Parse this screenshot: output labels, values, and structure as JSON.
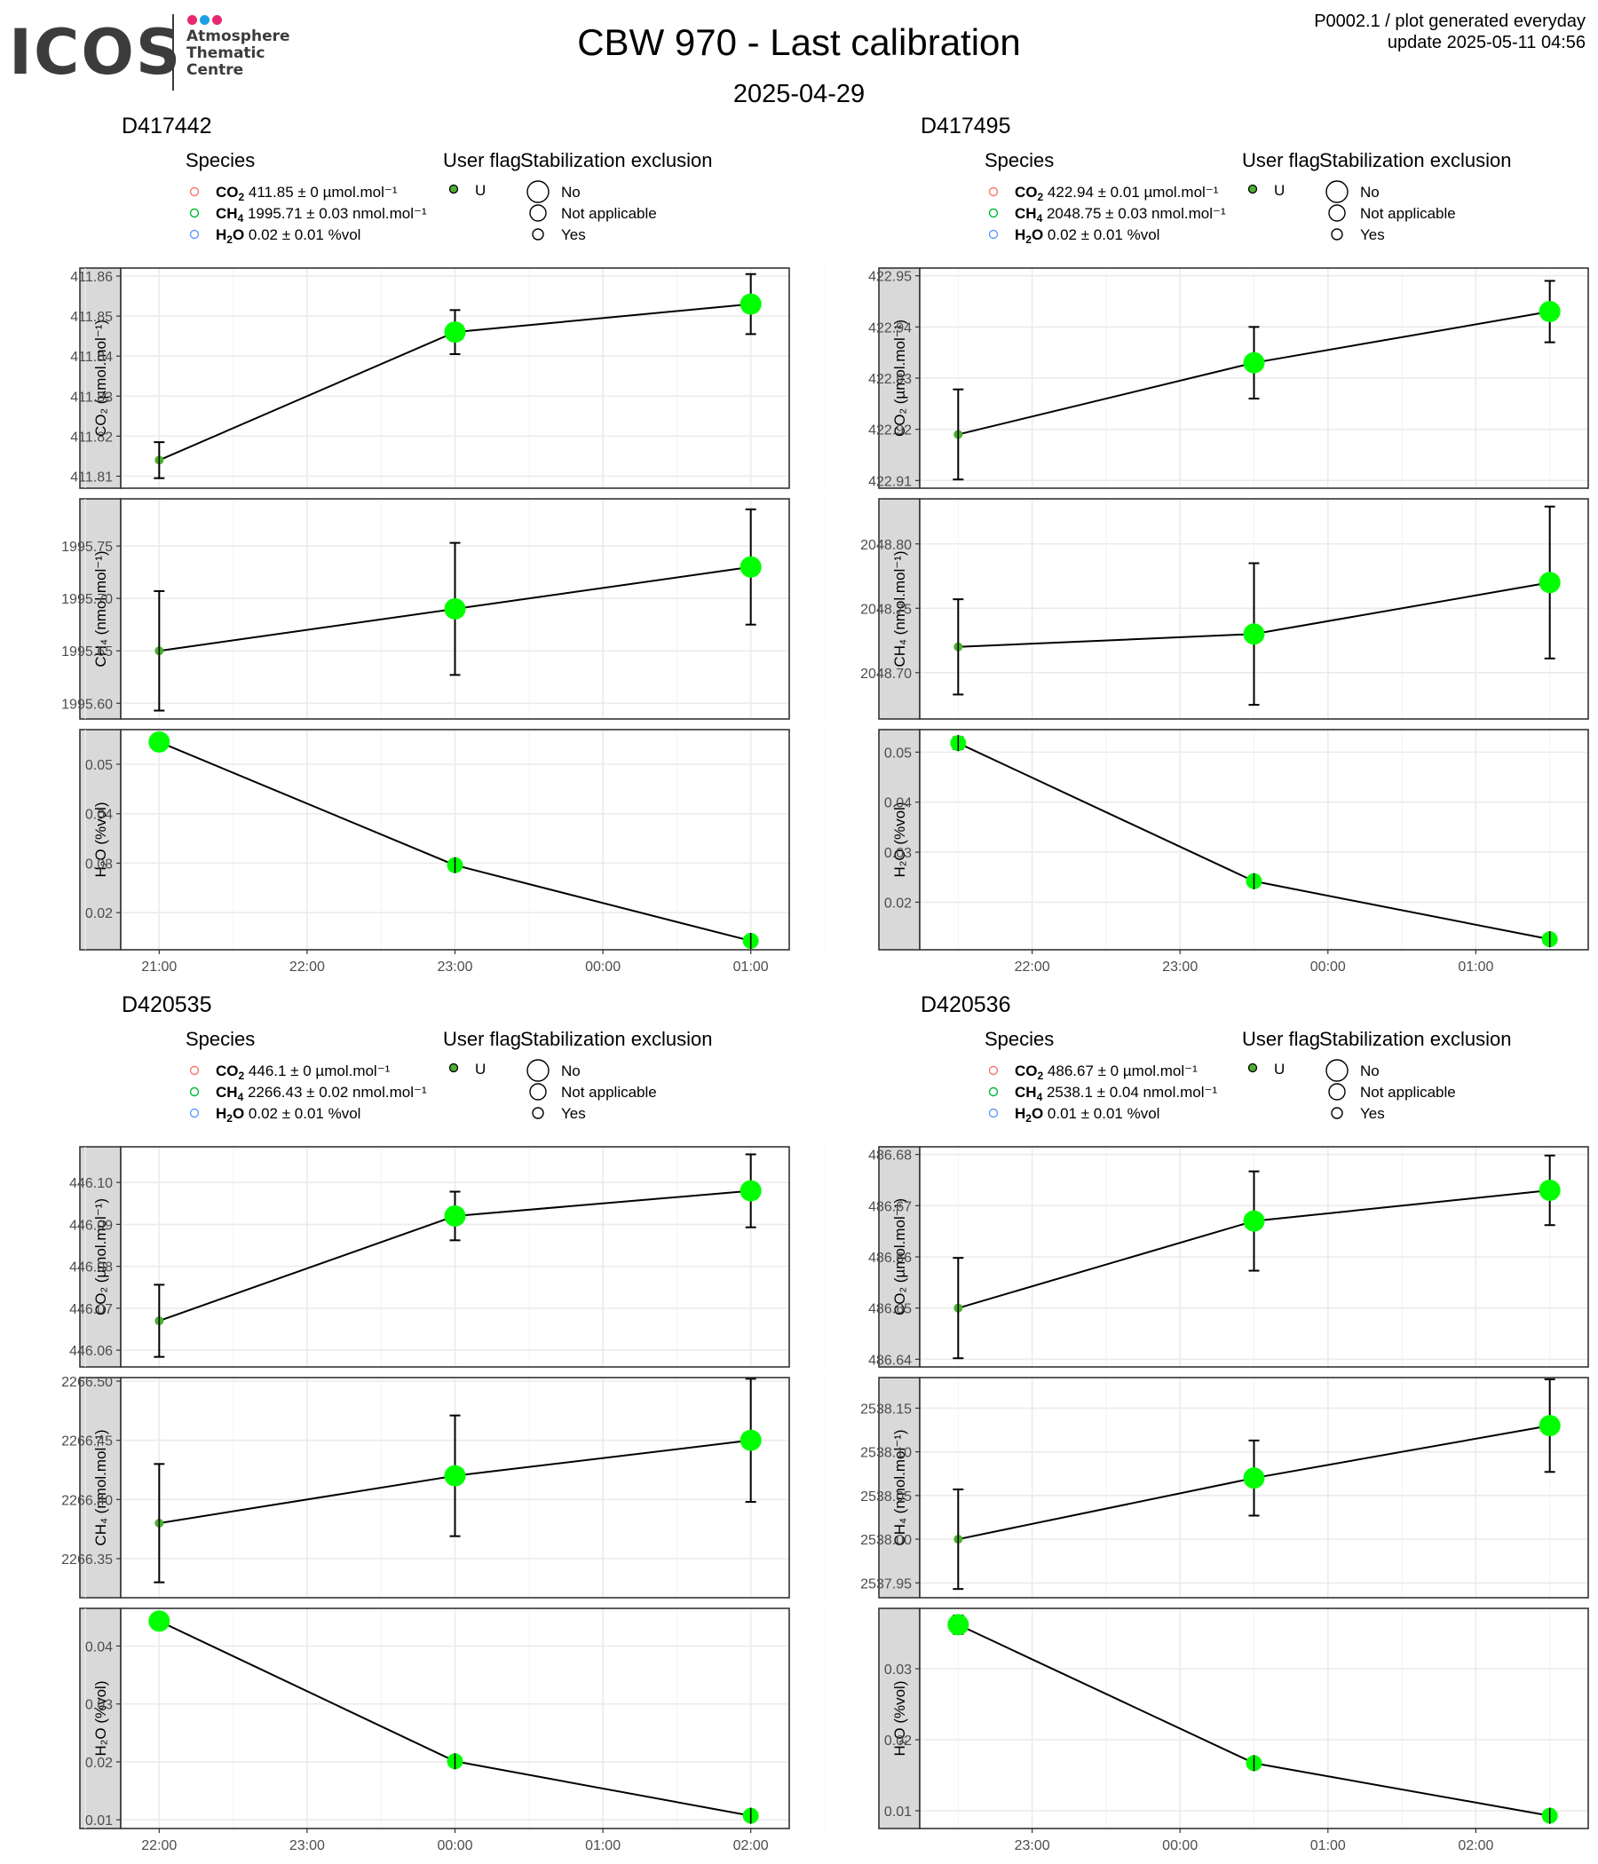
{
  "header": {
    "logo_text": "ICOS",
    "logo_subtitle": [
      "Atmosphere",
      "Thematic",
      "Centre"
    ],
    "title": "CBW 970 - Last calibration",
    "date": "2025-04-29",
    "meta_line1": "P0002.1 / plot generated everyday",
    "meta_line2": "update  2025-05-11 04:56"
  },
  "legend_labels": {
    "species_title": "Species",
    "flag_title": "User flag",
    "stab_title": "Stabilization exclusion",
    "flag_value": "U",
    "stab_values": [
      "No",
      "Not applicable",
      "Yes"
    ]
  },
  "colors": {
    "co2_legend": "#F8766D",
    "ch4_legend": "#00BA38",
    "h2o_legend": "#619CFF",
    "point_fill": "#00ff00",
    "point_fill_small": "#4caf30",
    "strip_bg": "#d9d9d9",
    "grid_major": "#ebebeb",
    "logo_dots": [
      "#e6286e",
      "#1ea0e6",
      "#e6286e"
    ]
  },
  "chart_data": [
    {
      "id": "D417442",
      "type": "line",
      "x_ticks": [
        "21:00",
        "22:00",
        "23:00",
        "00:00",
        "01:00"
      ],
      "x_positions": [
        0,
        1,
        2,
        3,
        4
      ],
      "legend": [
        {
          "species": "CO2",
          "value": "411.85",
          "unc": "0",
          "unit": "µmol.mol⁻¹"
        },
        {
          "species": "CH4",
          "value": "1995.71",
          "unc": "0.03",
          "unit": "nmol.mol⁻¹"
        },
        {
          "species": "H2O",
          "value": "0.02",
          "unc": "0.01",
          "unit": "%vol"
        }
      ],
      "panels": [
        {
          "ylabel": "CO₂ (µmol.mol⁻¹)",
          "ylim": [
            411.807,
            411.862
          ],
          "yticks": [
            "411.81",
            "411.82",
            "411.83",
            "411.84",
            "411.85",
            "411.86"
          ],
          "points": [
            {
              "x": 0,
              "y": 411.814,
              "err": 0.0045,
              "stab": "Yes"
            },
            {
              "x": 2,
              "y": 411.846,
              "err": 0.0055,
              "stab": "No"
            },
            {
              "x": 4,
              "y": 411.853,
              "err": 0.0075,
              "stab": "No"
            }
          ]
        },
        {
          "ylabel": "CH₄ (nmol.mol⁻¹)",
          "ylim": [
            1995.585,
            1995.795
          ],
          "yticks": [
            "1995.60",
            "1995.65",
            "1995.70",
            "1995.75"
          ],
          "points": [
            {
              "x": 0,
              "y": 1995.65,
              "err": 0.057,
              "stab": "Yes"
            },
            {
              "x": 2,
              "y": 1995.69,
              "err": 0.063,
              "stab": "No"
            },
            {
              "x": 4,
              "y": 1995.73,
              "err": 0.055,
              "stab": "No"
            }
          ]
        },
        {
          "ylabel": "H₂O (%vol)",
          "ylim": [
            0.0125,
            0.057
          ],
          "yticks": [
            "0.02",
            "0.03",
            "0.04",
            "0.05"
          ],
          "points": [
            {
              "x": 0,
              "y": 0.0545,
              "err": 0.0002,
              "stab": "No"
            },
            {
              "x": 2,
              "y": 0.0296,
              "err": 0.0008,
              "stab": "Not applicable"
            },
            {
              "x": 4,
              "y": 0.0143,
              "err": 0.0006,
              "stab": "Not applicable"
            }
          ]
        }
      ]
    },
    {
      "id": "D417495",
      "type": "line",
      "x_ticks": [
        "22:00",
        "23:00",
        "00:00",
        "01:00"
      ],
      "x_positions": [
        0.5,
        1.5,
        2.5,
        3.5
      ],
      "legend": [
        {
          "species": "CO2",
          "value": "422.94",
          "unc": "0.01",
          "unit": "µmol.mol⁻¹"
        },
        {
          "species": "CH4",
          "value": "2048.75",
          "unc": "0.03",
          "unit": "nmol.mol⁻¹"
        },
        {
          "species": "H2O",
          "value": "0.02",
          "unc": "0.01",
          "unit": "%vol"
        }
      ],
      "panels": [
        {
          "ylabel": "CO₂ (µmol.mol⁻¹)",
          "ylim": [
            422.9085,
            422.9515
          ],
          "yticks": [
            "422.91",
            "422.92",
            "422.93",
            "422.94",
            "422.95"
          ],
          "points": [
            {
              "x": 0,
              "y": 422.919,
              "err": 0.0088,
              "stab": "Yes"
            },
            {
              "x": 2,
              "y": 422.933,
              "err": 0.007,
              "stab": "No"
            },
            {
              "x": 4,
              "y": 422.943,
              "err": 0.006,
              "stab": "No"
            }
          ]
        },
        {
          "ylabel": "CH₄ (nmol.mol⁻¹)",
          "ylim": [
            2048.664,
            2048.835
          ],
          "yticks": [
            "2048.70",
            "2048.75",
            "2048.80"
          ],
          "points": [
            {
              "x": 0,
              "y": 2048.72,
              "err": 0.037,
              "stab": "Yes"
            },
            {
              "x": 2,
              "y": 2048.73,
              "err": 0.055,
              "stab": "No"
            },
            {
              "x": 4,
              "y": 2048.77,
              "err": 0.059,
              "stab": "No"
            }
          ]
        },
        {
          "ylabel": "H₂O (%vol)",
          "ylim": [
            0.0105,
            0.0545
          ],
          "yticks": [
            "0.02",
            "0.03",
            "0.04",
            "0.05"
          ],
          "points": [
            {
              "x": 0,
              "y": 0.0518,
              "err": 0.0012,
              "stab": "Not applicable"
            },
            {
              "x": 2,
              "y": 0.0242,
              "err": 0.0009,
              "stab": "Not applicable"
            },
            {
              "x": 4,
              "y": 0.0126,
              "err": 0.0008,
              "stab": "Not applicable"
            }
          ]
        }
      ]
    },
    {
      "id": "D420535",
      "type": "line",
      "x_ticks": [
        "22:00",
        "23:00",
        "00:00",
        "01:00",
        "02:00"
      ],
      "x_positions": [
        0,
        1,
        2,
        3,
        4
      ],
      "legend": [
        {
          "species": "CO2",
          "value": "446.1",
          "unc": "0",
          "unit": "µmol.mol⁻¹"
        },
        {
          "species": "CH4",
          "value": "2266.43",
          "unc": "0.02",
          "unit": "nmol.mol⁻¹"
        },
        {
          "species": "H2O",
          "value": "0.02",
          "unc": "0.01",
          "unit": "%vol"
        }
      ],
      "panels": [
        {
          "ylabel": "CO₂ (µmol.mol⁻¹)",
          "ylim": [
            446.056,
            446.1085
          ],
          "yticks": [
            "446.06",
            "446.07",
            "446.08",
            "446.09",
            "446.10"
          ],
          "points": [
            {
              "x": 0,
              "y": 446.067,
              "err": 0.0086,
              "stab": "Yes"
            },
            {
              "x": 2,
              "y": 446.092,
              "err": 0.0058,
              "stab": "No"
            },
            {
              "x": 4,
              "y": 446.098,
              "err": 0.0087,
              "stab": "No"
            }
          ]
        },
        {
          "ylabel": "CH₄ (nmol.mol⁻¹)",
          "ylim": [
            2266.317,
            2266.503
          ],
          "yticks": [
            "2266.35",
            "2266.40",
            "2266.45",
            "2266.50"
          ],
          "points": [
            {
              "x": 0,
              "y": 2266.38,
              "err": 0.05,
              "stab": "Yes"
            },
            {
              "x": 2,
              "y": 2266.42,
              "err": 0.051,
              "stab": "No"
            },
            {
              "x": 4,
              "y": 2266.45,
              "err": 0.052,
              "stab": "No"
            }
          ]
        },
        {
          "ylabel": "H₂O (%vol)",
          "ylim": [
            0.0085,
            0.0465
          ],
          "yticks": [
            "0.01",
            "0.02",
            "0.03",
            "0.04"
          ],
          "points": [
            {
              "x": 0,
              "y": 0.0443,
              "err": 0.0014,
              "stab": "No"
            },
            {
              "x": 2,
              "y": 0.0201,
              "err": 0.0006,
              "stab": "Not applicable"
            },
            {
              "x": 4,
              "y": 0.0107,
              "err": 0.0005,
              "stab": "Not applicable"
            }
          ]
        }
      ]
    },
    {
      "id": "D420536",
      "type": "line",
      "x_ticks": [
        "23:00",
        "00:00",
        "01:00",
        "02:00"
      ],
      "x_positions": [
        0.5,
        1.5,
        2.5,
        3.5
      ],
      "legend": [
        {
          "species": "CO2",
          "value": "486.67",
          "unc": "0",
          "unit": "µmol.mol⁻¹"
        },
        {
          "species": "CH4",
          "value": "2538.1",
          "unc": "0.04",
          "unit": "nmol.mol⁻¹"
        },
        {
          "species": "H2O",
          "value": "0.01",
          "unc": "0.01",
          "unit": "%vol"
        }
      ],
      "panels": [
        {
          "ylabel": "CO₂ (µmol.mol⁻¹)",
          "ylim": [
            486.6385,
            486.6815
          ],
          "yticks": [
            "486.64",
            "486.65",
            "486.66",
            "486.67",
            "486.68"
          ],
          "points": [
            {
              "x": 0,
              "y": 486.65,
              "err": 0.0098,
              "stab": "Yes"
            },
            {
              "x": 2,
              "y": 486.667,
              "err": 0.0097,
              "stab": "No"
            },
            {
              "x": 4,
              "y": 486.673,
              "err": 0.0068,
              "stab": "No"
            }
          ]
        },
        {
          "ylabel": "CH₄ (nmol.mol⁻¹)",
          "ylim": [
            2537.933,
            2538.185
          ],
          "yticks": [
            "2537.95",
            "2538.00",
            "2538.05",
            "2538.10",
            "2538.15"
          ],
          "points": [
            {
              "x": 0,
              "y": 2538.0,
              "err": 0.057,
              "stab": "Yes"
            },
            {
              "x": 2,
              "y": 2538.07,
              "err": 0.043,
              "stab": "No"
            },
            {
              "x": 4,
              "y": 2538.13,
              "err": 0.053,
              "stab": "No"
            }
          ]
        },
        {
          "ylabel": "H₂O (%vol)",
          "ylim": [
            0.0075,
            0.0385
          ],
          "yticks": [
            "0.01",
            "0.02",
            "0.03"
          ],
          "points": [
            {
              "x": 0,
              "y": 0.0362,
              "err": 0.0013,
              "stab": "No"
            },
            {
              "x": 2,
              "y": 0.0167,
              "err": 0.0006,
              "stab": "Not applicable"
            },
            {
              "x": 4,
              "y": 0.0093,
              "err": 0.0004,
              "stab": "Not applicable"
            }
          ]
        }
      ]
    }
  ]
}
